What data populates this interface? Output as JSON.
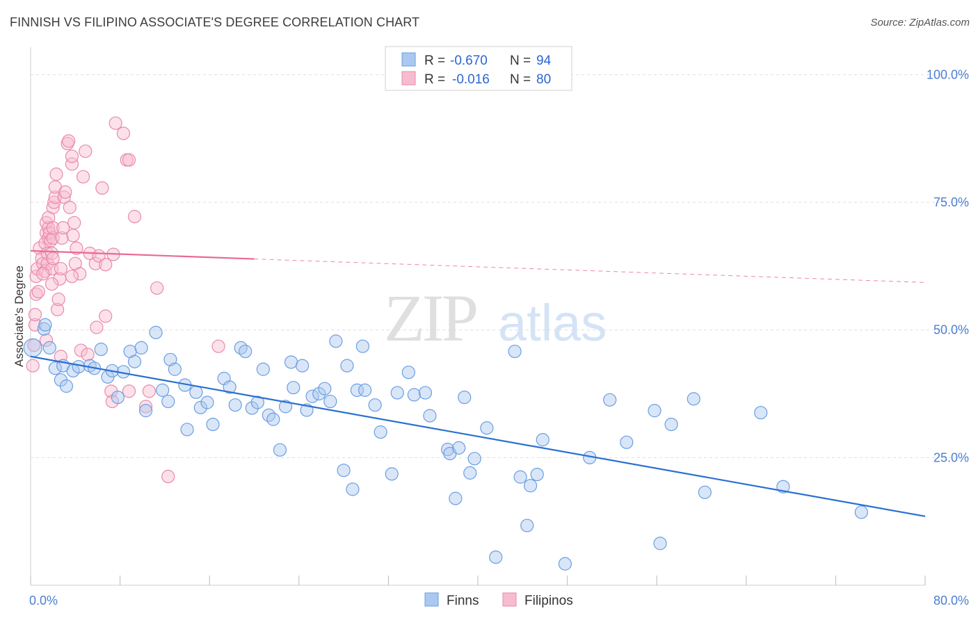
{
  "title": "FINNISH VS FILIPINO ASSOCIATE'S DEGREE CORRELATION CHART",
  "source": "Source: ZipAtlas.com",
  "watermark": {
    "zip": "ZIP",
    "atlas": "atlas"
  },
  "colors": {
    "finns_fill": "#aac8f0",
    "finns_stroke": "#6a9ee0",
    "finns_line": "#2a6fd0",
    "filipinos_fill": "#f8bcd0",
    "filipinos_stroke": "#e88aaa",
    "filipinos_line": "#e86a90",
    "tick_text": "#4a7fd0",
    "grid": "#dddddd"
  },
  "legend": {
    "rows": [
      {
        "r_label": "R =",
        "r_value": "-0.670",
        "n_label": "N =",
        "n_value": "94"
      },
      {
        "r_label": "R =",
        "r_value": "-0.016",
        "n_label": "N =",
        "n_value": "80"
      }
    ]
  },
  "chart_data": {
    "type": "scatter",
    "ylabel": "Associate's Degree",
    "xlim": [
      0,
      80
    ],
    "ylim": [
      0,
      104
    ],
    "y_ticks": [
      {
        "value": 100,
        "label": "100.0%"
      },
      {
        "value": 75,
        "label": "75.0%"
      },
      {
        "value": 50,
        "label": "50.0%"
      },
      {
        "value": 25,
        "label": "25.0%"
      }
    ],
    "x_tick_labels": {
      "min": "0.0%",
      "max": "80.0%"
    },
    "series": [
      {
        "name": "Finns",
        "trend": {
          "x0": 0,
          "y0": 44.8,
          "x1": 80,
          "y1": 13.5
        },
        "points": [
          [
            0.2,
            46.5
          ],
          [
            1.2,
            50.2
          ],
          [
            1.3,
            51
          ],
          [
            1.7,
            46.5
          ],
          [
            2.2,
            42.5
          ],
          [
            2.7,
            40.2
          ],
          [
            2.9,
            43
          ],
          [
            3.2,
            39
          ],
          [
            3.8,
            42
          ],
          [
            4.3,
            42.8
          ],
          [
            5.3,
            43
          ],
          [
            5.7,
            42.5
          ],
          [
            6.3,
            46.2
          ],
          [
            6.9,
            40.8
          ],
          [
            7.3,
            42
          ],
          [
            7.8,
            36.8
          ],
          [
            8.3,
            41.8
          ],
          [
            8.9,
            45.8
          ],
          [
            9.3,
            43.8
          ],
          [
            9.9,
            46.5
          ],
          [
            10.3,
            34.2
          ],
          [
            11.2,
            49.5
          ],
          [
            11.8,
            38.2
          ],
          [
            12.3,
            36
          ],
          [
            12.5,
            44.2
          ],
          [
            12.9,
            42.3
          ],
          [
            13.8,
            39.2
          ],
          [
            14,
            30.5
          ],
          [
            14.8,
            37.8
          ],
          [
            15.2,
            34.8
          ],
          [
            15.8,
            35.8
          ],
          [
            16.3,
            31.5
          ],
          [
            17.3,
            40.5
          ],
          [
            17.8,
            38.8
          ],
          [
            18.3,
            35.3
          ],
          [
            18.8,
            46.5
          ],
          [
            19.2,
            45.8
          ],
          [
            19.8,
            34.7
          ],
          [
            20.3,
            35.8
          ],
          [
            20.8,
            42.3
          ],
          [
            21.3,
            33.3
          ],
          [
            21.7,
            32.5
          ],
          [
            22.3,
            26.5
          ],
          [
            22.8,
            35
          ],
          [
            23.3,
            43.7
          ],
          [
            23.5,
            38.7
          ],
          [
            24.3,
            43
          ],
          [
            24.7,
            34.3
          ],
          [
            25.2,
            37
          ],
          [
            25.8,
            37.5
          ],
          [
            26.3,
            38.5
          ],
          [
            26.8,
            36
          ],
          [
            27.3,
            47.8
          ],
          [
            28,
            22.5
          ],
          [
            28.3,
            43
          ],
          [
            28.8,
            18.8
          ],
          [
            29.2,
            38.2
          ],
          [
            29.7,
            46.8
          ],
          [
            29.9,
            38.2
          ],
          [
            30.8,
            35.3
          ],
          [
            31.3,
            30
          ],
          [
            32.3,
            21.8
          ],
          [
            32.8,
            37.7
          ],
          [
            33.8,
            41.7
          ],
          [
            34.3,
            37.3
          ],
          [
            35.3,
            37.7
          ],
          [
            35.7,
            33.2
          ],
          [
            37.3,
            26.6
          ],
          [
            37.5,
            25.8
          ],
          [
            38,
            17
          ],
          [
            38.3,
            26.9
          ],
          [
            38.8,
            36.8
          ],
          [
            39.3,
            22
          ],
          [
            39.7,
            24.8
          ],
          [
            40.8,
            30.8
          ],
          [
            41.6,
            5.5
          ],
          [
            43.3,
            45.8
          ],
          [
            43.8,
            21.2
          ],
          [
            44.4,
            11.7
          ],
          [
            44.7,
            19.5
          ],
          [
            45.3,
            21.7
          ],
          [
            45.8,
            28.5
          ],
          [
            47.8,
            4.2
          ],
          [
            50,
            25
          ],
          [
            51.8,
            36.3
          ],
          [
            53.3,
            28
          ],
          [
            55.8,
            34.2
          ],
          [
            56.3,
            8.2
          ],
          [
            57.3,
            31.5
          ],
          [
            59.3,
            36.5
          ],
          [
            60.3,
            18.2
          ],
          [
            65.3,
            33.8
          ],
          [
            67.3,
            19.3
          ],
          [
            74.3,
            14.3
          ]
        ]
      },
      {
        "name": "Filipinos",
        "trend": {
          "x0": 0,
          "y0": 65.5,
          "x1": 20,
          "y1": 63.9,
          "x2": 80,
          "y2": 59.3
        },
        "points": [
          [
            0.2,
            43
          ],
          [
            0.3,
            47
          ],
          [
            0.4,
            51
          ],
          [
            0.4,
            53
          ],
          [
            0.5,
            57
          ],
          [
            0.5,
            60.5
          ],
          [
            0.6,
            62
          ],
          [
            0.7,
            57.5
          ],
          [
            0.8,
            66
          ],
          [
            1,
            64
          ],
          [
            1.1,
            63
          ],
          [
            1.3,
            61.5
          ],
          [
            1.3,
            67
          ],
          [
            1.4,
            69
          ],
          [
            1.4,
            71
          ],
          [
            1.5,
            63
          ],
          [
            1.5,
            65
          ],
          [
            1.6,
            68
          ],
          [
            1.6,
            70
          ],
          [
            1.6,
            72
          ],
          [
            1.7,
            69
          ],
          [
            1.8,
            67.5
          ],
          [
            1.9,
            62
          ],
          [
            1.9,
            65
          ],
          [
            2,
            64
          ],
          [
            2,
            68
          ],
          [
            2,
            70
          ],
          [
            2,
            74
          ],
          [
            2.1,
            75
          ],
          [
            2.2,
            76
          ],
          [
            2.2,
            78
          ],
          [
            2.3,
            80.5
          ],
          [
            2.4,
            54
          ],
          [
            2.5,
            56
          ],
          [
            2.6,
            60
          ],
          [
            2.7,
            62
          ],
          [
            2.8,
            68
          ],
          [
            2.9,
            70
          ],
          [
            3,
            76
          ],
          [
            3.1,
            77
          ],
          [
            3.3,
            86.5
          ],
          [
            3.4,
            87
          ],
          [
            3.5,
            74
          ],
          [
            3.7,
            82.5
          ],
          [
            3.7,
            84
          ],
          [
            3.8,
            68.5
          ],
          [
            3.9,
            71
          ],
          [
            4,
            63
          ],
          [
            4.1,
            66
          ],
          [
            4.4,
            61
          ],
          [
            4.7,
            80
          ],
          [
            4.9,
            85
          ],
          [
            5.3,
            65
          ],
          [
            5.9,
            50.5
          ],
          [
            6.4,
            77.8
          ],
          [
            6.7,
            52.7
          ],
          [
            7.2,
            38
          ],
          [
            7.3,
            36
          ],
          [
            7.6,
            90.5
          ],
          [
            8.3,
            88.5
          ],
          [
            8.6,
            83.3
          ],
          [
            8.8,
            83.3
          ],
          [
            9.3,
            72.2
          ],
          [
            10.3,
            35
          ],
          [
            10.6,
            38
          ],
          [
            11.3,
            58.2
          ],
          [
            12.3,
            21.3
          ],
          [
            16.8,
            46.8
          ],
          [
            1.1,
            61
          ],
          [
            1.4,
            48
          ],
          [
            1.9,
            59
          ],
          [
            2.7,
            44.8
          ],
          [
            3.7,
            60.5
          ],
          [
            4.5,
            46
          ],
          [
            5.1,
            45.2
          ],
          [
            5.8,
            63
          ],
          [
            6.1,
            64.5
          ],
          [
            6.7,
            62.8
          ],
          [
            7.4,
            64.8
          ],
          [
            8.8,
            38
          ]
        ]
      }
    ]
  },
  "bottom_legend": {
    "finns": "Finns",
    "filipinos": "Filipinos"
  }
}
